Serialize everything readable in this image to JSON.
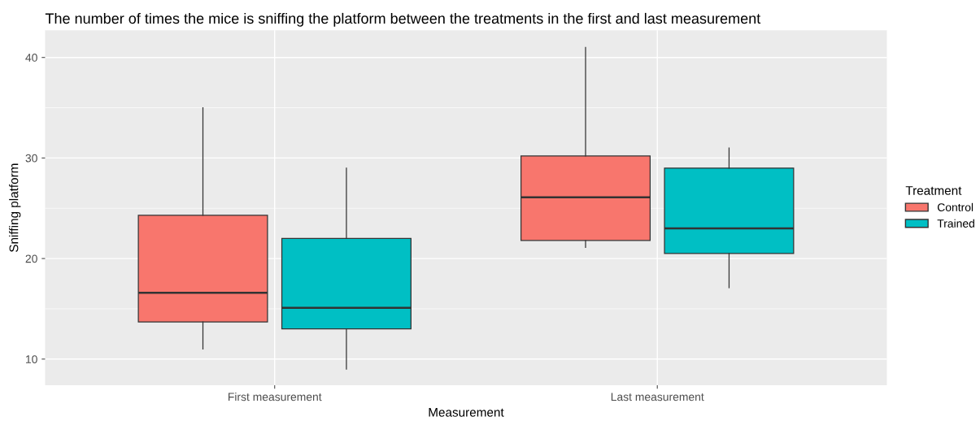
{
  "chart_data": {
    "type": "box",
    "title": "The number of times the mice is sniffing the platform between the treatments in the first and last measurement",
    "xlabel": "Measurement",
    "ylabel": "Sniffing platform",
    "legend_title": "Treatment",
    "categories": [
      "First measurement",
      "Last measurement"
    ],
    "series": [
      {
        "name": "Control",
        "color": "#f8766d",
        "boxes": [
          {
            "low": 11.0,
            "q1": 13.7,
            "median": 16.6,
            "q3": 24.3,
            "high": 35.0
          },
          {
            "low": 21.1,
            "q1": 21.8,
            "median": 26.1,
            "q3": 30.2,
            "high": 41.0
          }
        ]
      },
      {
        "name": "Trained",
        "color": "#00bfc4",
        "boxes": [
          {
            "low": 9.0,
            "q1": 13.0,
            "median": 15.1,
            "q3": 22.0,
            "high": 29.0
          },
          {
            "low": 17.1,
            "q1": 20.5,
            "median": 23.0,
            "q3": 29.0,
            "high": 31.0
          }
        ]
      }
    ],
    "ylim": [
      7.4,
      42.7
    ],
    "yticks": [
      10,
      20,
      30,
      40
    ],
    "grid": true,
    "legend": "right"
  }
}
